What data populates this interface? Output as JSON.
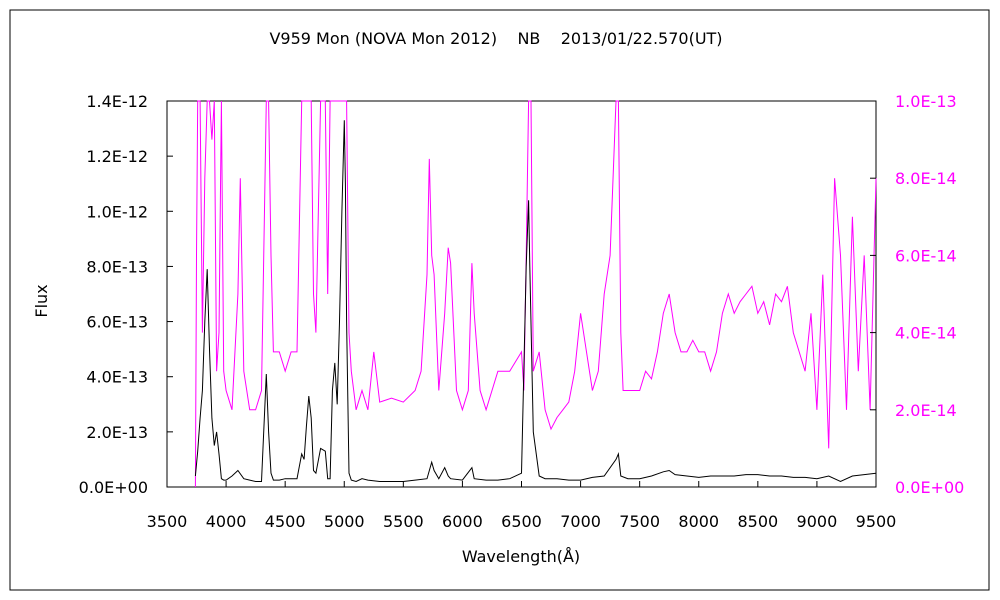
{
  "chart_data": {
    "type": "line",
    "title": "V959 Mon (NOVA Mon 2012)    NB    2013/01/22.570(UT)",
    "xlabel": "Wavelength(Å)",
    "ylabel": "Flux",
    "xlim": [
      3500,
      9500
    ],
    "ylim": [
      0,
      1.4e-12
    ],
    "y2lim": [
      0,
      1e-13
    ],
    "xticks": [
      "3500",
      "4000",
      "4500",
      "5000",
      "5500",
      "6000",
      "6500",
      "7000",
      "7500",
      "8000",
      "8500",
      "9000",
      "9500"
    ],
    "yticks": [
      "0.0E+00",
      "2.0E-13",
      "4.0E-13",
      "6.0E-13",
      "8.0E-13",
      "1.0E-12",
      "1.2E-12",
      "1.4E-12"
    ],
    "y2ticks": [
      "0.0E+00",
      "2.0E-14",
      "4.0E-14",
      "6.0E-14",
      "8.0E-14",
      "1.0E-13"
    ],
    "grid": false,
    "colors": {
      "primary": "#000000",
      "secondary": "#ff00ff",
      "frame": "#000000"
    },
    "series": [
      {
        "axis": "left",
        "color": "#000000",
        "x": [
          3740,
          3760,
          3780,
          3800,
          3820,
          3840,
          3860,
          3880,
          3900,
          3920,
          3940,
          3960,
          3980,
          4000,
          4050,
          4100,
          4150,
          4200,
          4250,
          4300,
          4340,
          4360,
          4380,
          4400,
          4450,
          4500,
          4550,
          4600,
          4640,
          4660,
          4680,
          4700,
          4720,
          4740,
          4760,
          4800,
          4840,
          4860,
          4880,
          4900,
          4920,
          4940,
          4960,
          4980,
          5000,
          5010,
          5020,
          5040,
          5060,
          5100,
          5150,
          5200,
          5300,
          5400,
          5500,
          5600,
          5700,
          5740,
          5760,
          5800,
          5850,
          5880,
          5900,
          6000,
          6080,
          6100,
          6200,
          6300,
          6400,
          6500,
          6540,
          6560,
          6570,
          6600,
          6650,
          6700,
          6800,
          6900,
          7000,
          7100,
          7200,
          7300,
          7320,
          7340,
          7400,
          7500,
          7600,
          7700,
          7750,
          7800,
          7900,
          8000,
          8100,
          8200,
          8300,
          8400,
          8500,
          8600,
          8700,
          8800,
          8900,
          9000,
          9100,
          9200,
          9300,
          9400,
          9500
        ],
        "y": [
          4e-14,
          1.3e-13,
          2.5e-13,
          3.5e-13,
          6e-13,
          7.9e-13,
          5e-13,
          2.5e-13,
          1.5e-13,
          2e-13,
          1.2e-13,
          3e-14,
          2.5e-14,
          2.5e-14,
          4e-14,
          6e-14,
          3e-14,
          2.5e-14,
          2e-14,
          2e-14,
          4.1e-13,
          2e-13,
          5e-14,
          2.5e-14,
          2.5e-14,
          3e-14,
          3e-14,
          3e-14,
          1.2e-13,
          1e-13,
          2.2e-13,
          3.3e-13,
          2.5e-13,
          6e-14,
          5e-14,
          1.4e-13,
          1.3e-13,
          3e-14,
          3e-14,
          3.5e-13,
          4.5e-13,
          3e-13,
          6e-13,
          1e-12,
          1.33e-12,
          1.1e-12,
          6e-13,
          5e-14,
          2.5e-14,
          2e-14,
          3e-14,
          2.5e-14,
          2e-14,
          2e-14,
          2e-14,
          2.5e-14,
          3e-14,
          9e-14,
          6e-14,
          3e-14,
          7e-14,
          4e-14,
          3e-14,
          2.5e-14,
          7e-14,
          3e-14,
          2.5e-14,
          2.5e-14,
          3e-14,
          5e-14,
          8e-13,
          1.04e-12,
          8e-13,
          2e-13,
          4e-14,
          3e-14,
          3e-14,
          2.5e-14,
          2.5e-14,
          3.5e-14,
          4e-14,
          1e-13,
          1.2e-13,
          4e-14,
          3e-14,
          3e-14,
          4e-14,
          5.5e-14,
          6e-14,
          4.5e-14,
          4e-14,
          3.5e-14,
          4e-14,
          4e-14,
          4e-14,
          4.5e-14,
          4.5e-14,
          4e-14,
          4e-14,
          3.5e-14,
          3.5e-14,
          3e-14,
          4e-14,
          2e-14,
          4e-14,
          4.5e-14,
          5e-14
        ]
      },
      {
        "axis": "right",
        "color": "#ff00ff",
        "x": [
          3740,
          3750,
          3760,
          3780,
          3800,
          3820,
          3840,
          3860,
          3880,
          3900,
          3920,
          3940,
          3960,
          3980,
          4000,
          4050,
          4100,
          4120,
          4150,
          4200,
          4250,
          4300,
          4340,
          4360,
          4380,
          4400,
          4450,
          4500,
          4550,
          4600,
          4640,
          4660,
          4680,
          4700,
          4720,
          4740,
          4760,
          4800,
          4840,
          4860,
          4880,
          4900,
          4920,
          4940,
          4960,
          4980,
          5000,
          5020,
          5040,
          5060,
          5100,
          5150,
          5200,
          5250,
          5300,
          5400,
          5500,
          5600,
          5650,
          5700,
          5720,
          5740,
          5760,
          5800,
          5850,
          5880,
          5900,
          5950,
          6000,
          6050,
          6080,
          6100,
          6150,
          6200,
          6300,
          6400,
          6500,
          6520,
          6540,
          6560,
          6580,
          6600,
          6650,
          6700,
          6750,
          6800,
          6850,
          6900,
          6950,
          7000,
          7050,
          7100,
          7150,
          7200,
          7250,
          7300,
          7320,
          7340,
          7360,
          7400,
          7450,
          7500,
          7550,
          7600,
          7650,
          7700,
          7750,
          7800,
          7850,
          7900,
          7950,
          8000,
          8050,
          8100,
          8150,
          8200,
          8250,
          8300,
          8350,
          8400,
          8450,
          8500,
          8550,
          8600,
          8650,
          8700,
          8750,
          8800,
          8850,
          8900,
          8950,
          9000,
          9050,
          9100,
          9150,
          9200,
          9250,
          9300,
          9350,
          9400,
          9450,
          9500
        ],
        "y": [
          0.0,
          6e-14,
          1e-13,
          1e-13,
          4e-14,
          8e-14,
          1e-13,
          1e-13,
          9e-14,
          1e-13,
          3e-14,
          4e-14,
          1e-13,
          3e-14,
          2.5e-14,
          2e-14,
          5e-14,
          8e-14,
          3e-14,
          2e-14,
          2e-14,
          2.5e-14,
          1e-13,
          1e-13,
          6e-14,
          3.5e-14,
          3.5e-14,
          3e-14,
          3.5e-14,
          3.5e-14,
          1e-13,
          1e-13,
          1e-13,
          1e-13,
          1e-13,
          5e-14,
          4e-14,
          1e-13,
          1e-13,
          5e-14,
          1e-13,
          1e-13,
          1e-13,
          1e-13,
          1e-13,
          1e-13,
          1e-13,
          1e-13,
          4e-14,
          3e-14,
          2e-14,
          2.5e-14,
          2e-14,
          3.5e-14,
          2.2e-14,
          2.3e-14,
          2.2e-14,
          2.5e-14,
          3e-14,
          5.5e-14,
          8.5e-14,
          6e-14,
          5.5e-14,
          2.5e-14,
          4.5e-14,
          6.2e-14,
          5.8e-14,
          2.5e-14,
          2e-14,
          2.5e-14,
          5.8e-14,
          4.5e-14,
          2.5e-14,
          2e-14,
          3e-14,
          3e-14,
          3.5e-14,
          2.5e-14,
          6e-14,
          1e-13,
          1e-13,
          3e-14,
          3.5e-14,
          2e-14,
          1.5e-14,
          1.8e-14,
          2e-14,
          2.2e-14,
          3e-14,
          4.5e-14,
          3.5e-14,
          2.5e-14,
          3e-14,
          5e-14,
          6e-14,
          1e-13,
          1e-13,
          4e-14,
          2.5e-14,
          2.5e-14,
          2.5e-14,
          2.5e-14,
          3e-14,
          2.8e-14,
          3.5e-14,
          4.5e-14,
          5e-14,
          4e-14,
          3.5e-14,
          3.5e-14,
          3.8e-14,
          3.5e-14,
          3.5e-14,
          3e-14,
          3.5e-14,
          4.5e-14,
          5e-14,
          4.5e-14,
          4.8e-14,
          5e-14,
          5.2e-14,
          4.5e-14,
          4.8e-14,
          4.2e-14,
          5e-14,
          4.8e-14,
          5.2e-14,
          4e-14,
          3.5e-14,
          3e-14,
          4.5e-14,
          2e-14,
          5.5e-14,
          1e-14,
          8e-14,
          6e-14,
          2e-14,
          7e-14,
          3e-14,
          6e-14,
          2e-14,
          8e-14
        ]
      }
    ]
  }
}
